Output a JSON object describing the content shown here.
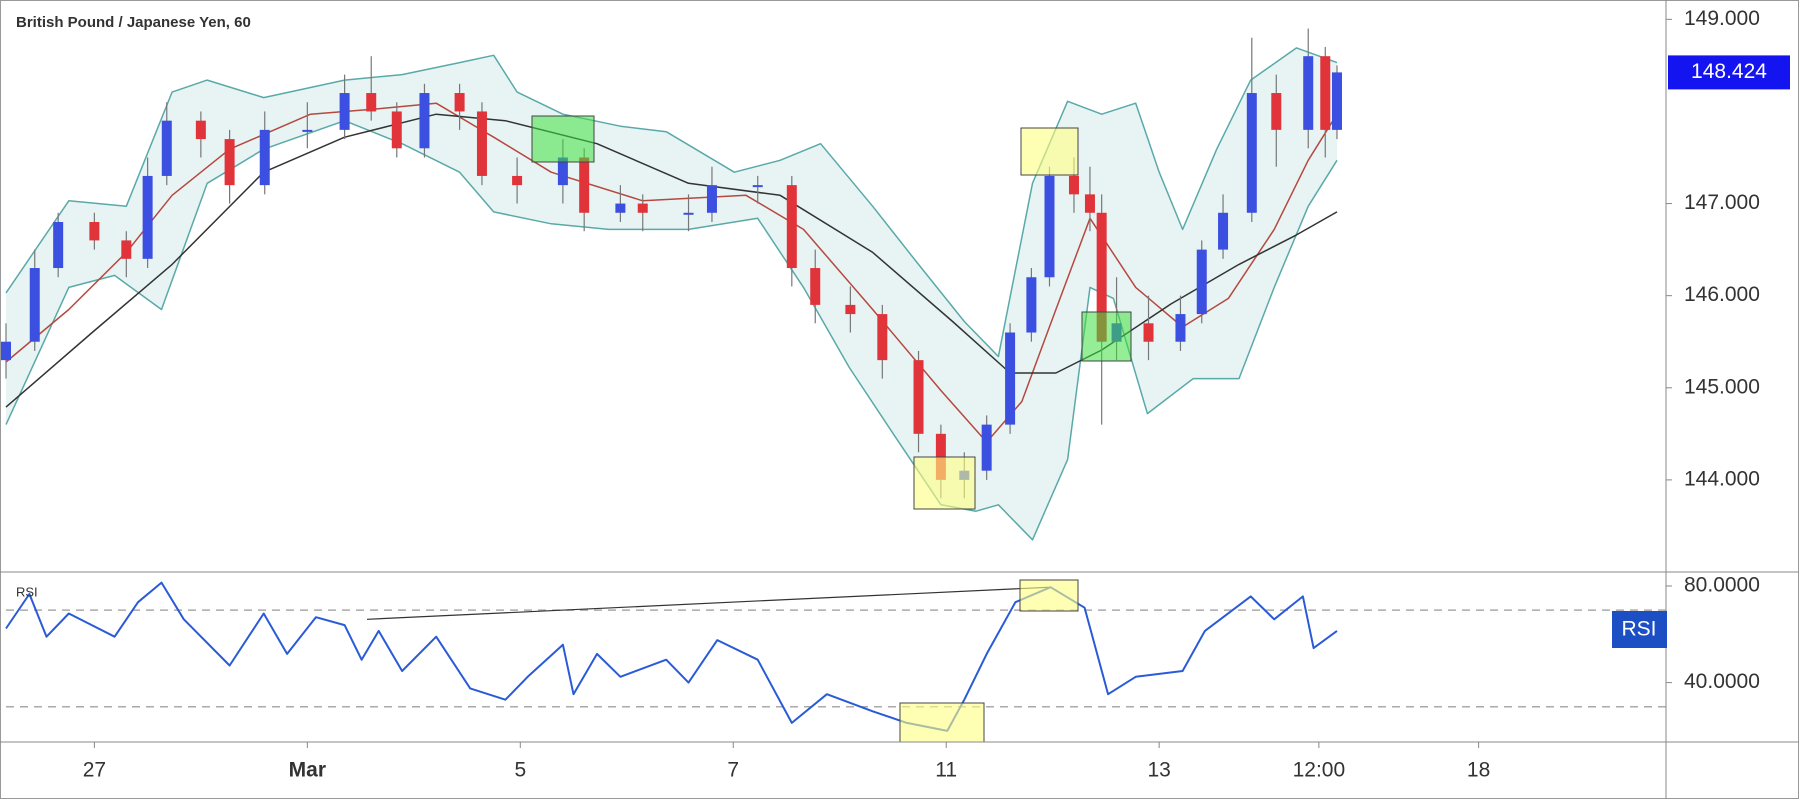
{
  "chart_data": [
    {
      "type": "candlestick",
      "title": "British Pound / Japanese Yen, 60",
      "x": [
        -0.83,
        -0.56,
        -0.34,
        0,
        0.3,
        0.5,
        0.68,
        1.0,
        1.27,
        1.6,
        2.0,
        2.35,
        2.6,
        2.84,
        3.1,
        3.43,
        3.64,
        3.97,
        4.4,
        4.6,
        4.94,
        5.15,
        5.58,
        5.8,
        6.23,
        6.55,
        6.77,
        7.1,
        7.4,
        7.74,
        7.95,
        8.17,
        8.38,
        8.6,
        8.8,
        8.97,
        9.2,
        9.35,
        9.46,
        9.6,
        9.9,
        10.2,
        10.4,
        10.6,
        10.87,
        11.1,
        11.4,
        11.56,
        11.67
      ],
      "open": [
        145.3,
        145.5,
        146.3,
        146.8,
        146.6,
        146.4,
        147.3,
        147.9,
        147.7,
        147.2,
        147.8,
        147.8,
        148.2,
        148.0,
        147.6,
        148.2,
        148.0,
        147.3,
        147.2,
        147.5,
        146.9,
        147.0,
        146.9,
        146.9,
        147.2,
        147.2,
        146.3,
        145.9,
        145.8,
        145.3,
        144.5,
        144.0,
        144.1,
        144.6,
        145.6,
        146.2,
        147.3,
        147.1,
        146.9,
        145.5,
        145.7,
        145.5,
        145.8,
        146.5,
        146.9,
        148.2,
        147.8,
        148.6,
        147.8
      ],
      "high": [
        145.7,
        146.5,
        146.9,
        146.9,
        146.7,
        147.5,
        148.1,
        148.0,
        147.8,
        148.0,
        148.1,
        148.4,
        148.6,
        148.1,
        148.3,
        148.3,
        148.1,
        147.5,
        147.7,
        147.6,
        147.2,
        147.1,
        147.1,
        147.4,
        147.3,
        147.3,
        146.5,
        146.1,
        145.9,
        145.4,
        144.6,
        144.3,
        144.7,
        145.7,
        146.3,
        147.4,
        147.5,
        147.4,
        147.1,
        146.2,
        146.0,
        146.0,
        146.6,
        147.1,
        148.8,
        148.4,
        148.9,
        148.7,
        148.5
      ],
      "low": [
        145.1,
        145.4,
        146.2,
        146.5,
        146.2,
        146.3,
        147.2,
        147.5,
        147.0,
        147.1,
        147.6,
        147.7,
        147.9,
        147.5,
        147.5,
        147.8,
        147.2,
        147.0,
        147.0,
        146.7,
        146.8,
        146.7,
        146.7,
        146.8,
        147.0,
        146.1,
        145.7,
        145.6,
        145.1,
        144.3,
        143.8,
        143.8,
        144.0,
        144.5,
        145.5,
        146.1,
        146.9,
        146.7,
        144.6,
        145.3,
        145.3,
        145.4,
        145.7,
        146.4,
        146.8,
        147.4,
        147.6,
        147.5,
        147.7
      ],
      "close": [
        145.5,
        146.3,
        146.8,
        146.6,
        146.4,
        147.3,
        147.9,
        147.7,
        147.2,
        147.8,
        147.8,
        148.2,
        148.0,
        147.6,
        148.2,
        148.0,
        147.3,
        147.2,
        147.5,
        146.9,
        147.0,
        146.9,
        146.9,
        147.2,
        147.2,
        146.3,
        145.9,
        145.8,
        145.3,
        144.5,
        144.0,
        144.1,
        144.6,
        145.6,
        146.2,
        147.3,
        147.1,
        146.9,
        145.5,
        145.7,
        145.5,
        145.8,
        146.5,
        146.9,
        148.2,
        147.8,
        148.6,
        147.8,
        148.424
      ],
      "up_color": "#3b4fe0",
      "down_color": "#e0343a",
      "bands": {
        "color": "#5aa9a9",
        "fill": "#e8f4f4",
        "upper": {
          "x": [
            -0.83,
            -0.24,
            0.3,
            0.73,
            1.06,
            1.59,
            2.35,
            2.89,
            3.43,
            3.75,
            3.97,
            4.4,
            4.94,
            5.37,
            6.01,
            6.44,
            6.82,
            7.31,
            7.74,
            8.17,
            8.49,
            8.81,
            9.14,
            9.46,
            9.78,
            10.0,
            10.22,
            10.54,
            10.86,
            11.29,
            11.67
          ],
          "values": [
            146.03,
            147.03,
            146.97,
            148.21,
            148.34,
            148.15,
            148.34,
            148.4,
            148.53,
            148.61,
            148.21,
            147.97,
            147.84,
            147.78,
            147.34,
            147.47,
            147.65,
            146.97,
            146.34,
            145.72,
            145.34,
            147.22,
            148.11,
            147.97,
            148.09,
            147.34,
            146.72,
            147.59,
            148.34,
            148.69,
            148.53
          ]
        },
        "lower": {
          "x": [
            -0.83,
            -0.24,
            0.19,
            0.63,
            1.06,
            1.59,
            2.35,
            2.89,
            3.43,
            3.75,
            4.29,
            4.83,
            5.58,
            6.23,
            6.66,
            7.09,
            7.52,
            7.95,
            8.28,
            8.49,
            8.81,
            9.14,
            9.35,
            9.57,
            9.89,
            10.32,
            10.75,
            11.08,
            11.4,
            11.67
          ],
          "values": [
            144.6,
            146.09,
            146.22,
            145.85,
            147.22,
            147.59,
            147.9,
            147.65,
            147.34,
            146.91,
            146.78,
            146.72,
            146.72,
            146.84,
            146.09,
            145.22,
            144.47,
            143.73,
            143.66,
            143.73,
            143.35,
            144.22,
            146.09,
            145.97,
            144.72,
            145.1,
            145.1,
            146.09,
            146.97,
            147.47
          ]
        }
      },
      "moving_averages": [
        {
          "color": "#b5483f",
          "x": [
            -0.83,
            -0.24,
            0.3,
            0.73,
            1.27,
            2.03,
            2.67,
            3.21,
            3.75,
            4.29,
            5.15,
            6.12,
            6.66,
            7.31,
            7.95,
            8.38,
            8.71,
            9.03,
            9.35,
            9.78,
            10.22,
            10.65,
            11.08,
            11.4,
            11.67
          ],
          "values": [
            145.28,
            145.85,
            146.47,
            147.09,
            147.59,
            147.97,
            148.03,
            148.09,
            147.72,
            147.34,
            147.03,
            147.09,
            146.72,
            145.85,
            144.97,
            144.41,
            144.85,
            145.85,
            146.84,
            146.09,
            145.66,
            145.97,
            146.72,
            147.47,
            147.97
          ]
        },
        {
          "color": "#333333",
          "x": [
            -0.83,
            -0.02,
            0.73,
            1.59,
            2.35,
            3.21,
            3.86,
            4.72,
            5.58,
            6.44,
            7.31,
            8.06,
            8.6,
            9.03,
            9.46,
            10.11,
            10.75,
            11.29,
            11.67
          ],
          "values": [
            144.79,
            145.6,
            146.34,
            147.34,
            147.72,
            147.97,
            147.9,
            147.65,
            147.22,
            147.09,
            146.47,
            145.72,
            145.16,
            145.16,
            145.41,
            145.91,
            146.34,
            146.66,
            146.91
          ]
        }
      ],
      "xlim": [
        -0.83,
        14.76
      ],
      "ylim": [
        143.0,
        149.21
      ],
      "yticks": [
        {
          "value": 144,
          "label": "144.000"
        },
        {
          "value": 145,
          "label": "145.000"
        },
        {
          "value": 146,
          "label": "146.000"
        },
        {
          "value": 147,
          "label": "147.000"
        },
        {
          "value": 149,
          "label": "149.000"
        }
      ],
      "xticks": [
        {
          "value": 0,
          "label": "27"
        },
        {
          "value": 2,
          "label": "Mar"
        },
        {
          "value": 4,
          "label": "5"
        },
        {
          "value": 6,
          "label": "7"
        },
        {
          "value": 8,
          "label": "11"
        },
        {
          "value": 10,
          "label": "13"
        },
        {
          "value": 11.5,
          "label": "12:00"
        },
        {
          "value": 13,
          "label": "18"
        }
      ]
    },
    {
      "type": "line",
      "title": "RSI",
      "color": "#2a5bd7",
      "x": [
        -0.83,
        -0.61,
        -0.45,
        -0.24,
        0.19,
        0.41,
        0.63,
        0.84,
        1.27,
        1.59,
        1.81,
        2.08,
        2.35,
        2.51,
        2.67,
        2.89,
        3.21,
        3.53,
        3.86,
        4.07,
        4.4,
        4.5,
        4.72,
        4.94,
        5.37,
        5.58,
        5.85,
        6.23,
        6.55,
        6.88,
        7.31,
        7.63,
        8.01,
        8.17,
        8.38,
        8.65,
        8.98,
        9.3,
        9.52,
        9.78,
        10.22,
        10.43,
        10.86,
        11.08,
        11.35,
        11.45,
        11.67
      ],
      "values": [
        62.4,
        76.7,
        59,
        68.6,
        59,
        73.3,
        81.4,
        66.2,
        47.1,
        68.6,
        51.9,
        67.1,
        63.8,
        49.5,
        61.4,
        44.8,
        59,
        37.6,
        32.9,
        42.4,
        55.7,
        35.2,
        51.9,
        42.4,
        49.5,
        40,
        57.6,
        49.5,
        23.3,
        35.2,
        28.1,
        23.3,
        20,
        32.9,
        51.9,
        73.3,
        79.5,
        71,
        35.2,
        42.4,
        44.8,
        61.4,
        75.7,
        66.2,
        75.7,
        54.3,
        61.4
      ],
      "levels": [
        70,
        30
      ],
      "trendline": {
        "x": [
          2.56,
          8.98
        ],
        "values": [
          66.2,
          79.5
        ]
      },
      "xlim": [
        -0.83,
        14.76
      ],
      "ylim": [
        15.4,
        85.8
      ],
      "yticks": [
        {
          "value": 40,
          "label": "40.0000"
        },
        {
          "value": 80,
          "label": "80.0000"
        }
      ]
    }
  ]
}
